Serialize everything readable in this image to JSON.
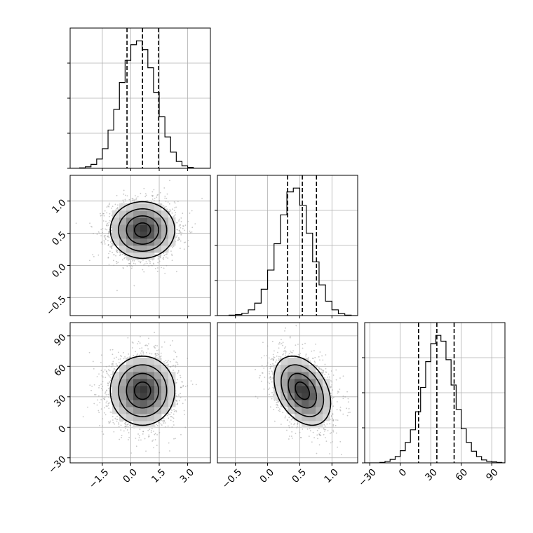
{
  "chart_data": [
    {
      "type": "histogram",
      "panel": "param-1-marginal",
      "x_range": [
        -3.2,
        4.2
      ],
      "grid": true,
      "quantile_lines": [
        -0.2,
        0.62,
        1.47
      ],
      "bin_edges": [
        -2.7,
        -2.4,
        -2.1,
        -1.8,
        -1.5,
        -1.2,
        -0.9,
        -0.6,
        -0.3,
        0.0,
        0.3,
        0.6,
        0.9,
        1.2,
        1.5,
        1.8,
        2.1,
        2.4,
        2.7,
        3.0,
        3.3
      ],
      "counts": [
        1,
        3,
        8,
        19,
        40,
        78,
        120,
        175,
        220,
        252,
        260,
        242,
        205,
        155,
        105,
        64,
        33,
        14,
        5,
        2
      ]
    },
    {
      "type": "histogram",
      "panel": "param-2-marginal",
      "x_range": [
        -0.78,
        1.4
      ],
      "grid": true,
      "quantile_lines": [
        0.31,
        0.54,
        0.76
      ],
      "bin_edges": [
        -0.6,
        -0.5,
        -0.4,
        -0.3,
        -0.2,
        -0.1,
        0.0,
        0.1,
        0.2,
        0.3,
        0.4,
        0.5,
        0.6,
        0.7,
        0.8,
        0.9,
        1.0,
        1.1,
        1.2,
        1.3
      ],
      "counts": [
        1,
        2,
        5,
        12,
        26,
        55,
        95,
        150,
        210,
        258,
        266,
        230,
        172,
        112,
        64,
        30,
        12,
        4,
        1
      ]
    },
    {
      "type": "histogram",
      "panel": "param-3-marginal",
      "x_range": [
        -35,
        103
      ],
      "grid": true,
      "quantile_lines": [
        18,
        36,
        53
      ],
      "bin_edges": [
        -20,
        -15,
        -10,
        -5,
        0,
        5,
        10,
        15,
        20,
        25,
        30,
        35,
        40,
        45,
        50,
        55,
        60,
        65,
        70,
        75,
        80,
        85,
        90,
        95,
        100
      ],
      "counts": [
        1,
        3,
        7,
        13,
        25,
        42,
        68,
        105,
        155,
        208,
        245,
        262,
        250,
        212,
        160,
        110,
        70,
        42,
        24,
        13,
        6,
        3,
        2,
        1
      ]
    },
    {
      "type": "heatmap",
      "panel": "param-1-vs-param-2",
      "x_range": [
        -3.2,
        4.2
      ],
      "y_range": [
        -0.78,
        1.4
      ],
      "grid": true,
      "center": [
        0.62,
        0.55
      ],
      "spread": [
        0.85,
        0.22
      ],
      "correlation": 0.0,
      "contour_levels": [
        0.118,
        0.393,
        0.675,
        0.865
      ]
    },
    {
      "type": "heatmap",
      "panel": "param-1-vs-param-3",
      "x_range": [
        -3.2,
        4.2
      ],
      "y_range": [
        -35,
        103
      ],
      "grid": true,
      "center": [
        0.62,
        36
      ],
      "spread": [
        0.85,
        17
      ],
      "correlation": 0.0,
      "contour_levels": [
        0.118,
        0.393,
        0.675,
        0.865
      ]
    },
    {
      "type": "heatmap",
      "panel": "param-2-vs-param-3",
      "x_range": [
        -0.78,
        1.4
      ],
      "y_range": [
        -35,
        103
      ],
      "grid": true,
      "center": [
        0.54,
        36
      ],
      "spread": [
        0.22,
        17
      ],
      "correlation": -0.35,
      "contour_levels": [
        0.118,
        0.393,
        0.675,
        0.865
      ]
    }
  ],
  "axes": {
    "x1_ticks": [
      "−1.5",
      "0.0",
      "1.5",
      "3.0"
    ],
    "x1_tick_values": [
      -1.5,
      0.0,
      1.5,
      3.0
    ],
    "x2_ticks": [
      "−0.5",
      "0.0",
      "0.5",
      "1.0"
    ],
    "x2_tick_values": [
      -0.5,
      0.0,
      0.5,
      1.0
    ],
    "x3_ticks": [
      "−30",
      "0",
      "30",
      "60",
      "90"
    ],
    "x3_tick_values": [
      -30,
      0,
      30,
      60,
      90
    ],
    "y2_ticks": [
      "1.0",
      "0.5",
      "0.0",
      "−0.5"
    ],
    "y2_tick_values": [
      1.0,
      0.5,
      0.0,
      -0.5
    ],
    "y3_ticks": [
      "90",
      "60",
      "30",
      "0",
      "−30"
    ],
    "y3_tick_values": [
      90,
      60,
      30,
      0,
      -30
    ]
  },
  "colors": {
    "line": "#000000",
    "grid": "#b0b0b0",
    "point": "#9a9a9a"
  }
}
